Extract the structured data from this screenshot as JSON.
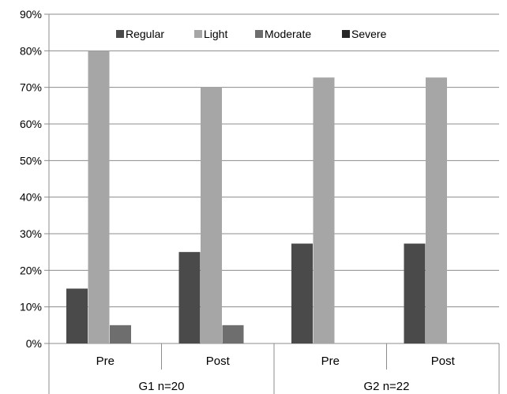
{
  "chart_data": {
    "type": "bar",
    "groups": [
      {
        "label": "G1 n=20",
        "categories": [
          "Pre",
          "Post"
        ]
      },
      {
        "label": "G2 n=22",
        "categories": [
          "Pre",
          "Post"
        ]
      }
    ],
    "categories": [
      "Pre",
      "Post",
      "Pre",
      "Post"
    ],
    "series": [
      {
        "name": "Regular",
        "color": "#4a4a4a",
        "values": [
          15,
          25,
          27.3,
          27.3
        ]
      },
      {
        "name": "Light",
        "color": "#a6a6a6",
        "values": [
          80,
          70,
          72.7,
          72.7
        ]
      },
      {
        "name": "Moderate",
        "color": "#6e6e6e",
        "values": [
          5,
          5,
          0,
          0
        ]
      },
      {
        "name": "Severe",
        "color": "#262626",
        "values": [
          0,
          0,
          0,
          0
        ]
      }
    ],
    "yticks": [
      "0%",
      "10%",
      "20%",
      "30%",
      "40%",
      "50%",
      "60%",
      "70%",
      "80%",
      "90%"
    ],
    "ylim": [
      0,
      90
    ],
    "grid": true,
    "legend_position": "top-center",
    "title": "",
    "xlabel": "",
    "ylabel": ""
  }
}
